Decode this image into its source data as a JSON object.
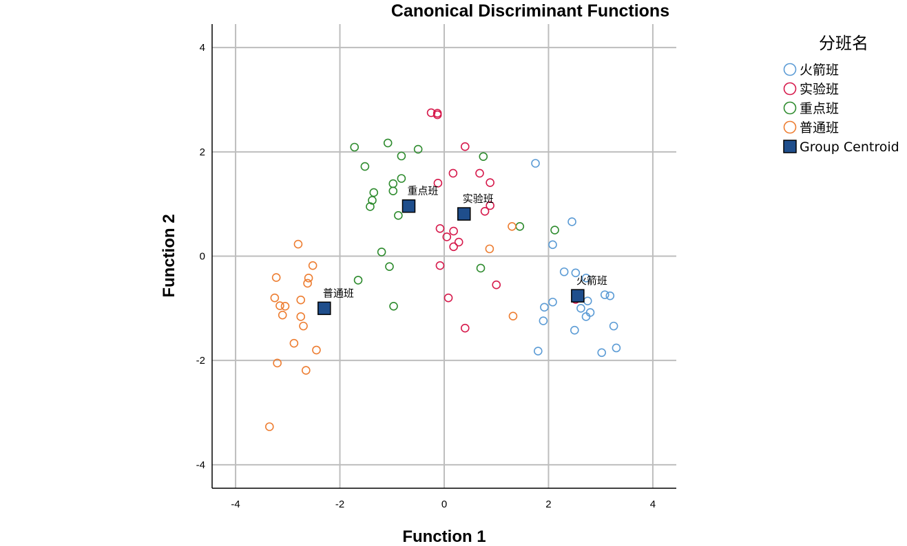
{
  "chart_data": {
    "type": "scatter",
    "title": "Canonical Discriminant Functions",
    "xlabel": "Function 1",
    "ylabel": "Function 2",
    "xlim": [
      -4.45,
      4.45
    ],
    "ylim": [
      -4.45,
      4.45
    ],
    "xticks": [
      -4,
      -2,
      0,
      2,
      4
    ],
    "yticks": [
      -4,
      -2,
      0,
      2,
      4
    ],
    "grid": true,
    "legend": {
      "title": "分班名",
      "placement": "right"
    },
    "series": [
      {
        "name": "火箭班",
        "color": "#5b9bd5",
        "points": [
          [
            1.75,
            1.78
          ],
          [
            2.45,
            0.66
          ],
          [
            2.08,
            0.22
          ],
          [
            2.3,
            -0.3
          ],
          [
            2.52,
            -0.32
          ],
          [
            2.72,
            -0.42
          ],
          [
            2.6,
            -0.8
          ],
          [
            3.08,
            -0.74
          ],
          [
            3.18,
            -0.76
          ],
          [
            2.75,
            -0.86
          ],
          [
            2.08,
            -0.88
          ],
          [
            1.92,
            -0.98
          ],
          [
            2.62,
            -1.0
          ],
          [
            2.8,
            -1.08
          ],
          [
            2.72,
            -1.16
          ],
          [
            1.9,
            -1.24
          ],
          [
            3.25,
            -1.34
          ],
          [
            2.5,
            -1.42
          ],
          [
            3.3,
            -1.76
          ],
          [
            1.8,
            -1.82
          ],
          [
            3.02,
            -1.85
          ]
        ],
        "centroid": [
          2.56,
          -0.76
        ]
      },
      {
        "name": "实验班",
        "color": "#d6194b",
        "points": [
          [
            -0.25,
            2.75
          ],
          [
            -0.13,
            2.74
          ],
          [
            -0.13,
            2.71
          ],
          [
            0.4,
            2.1
          ],
          [
            0.17,
            1.59
          ],
          [
            0.68,
            1.59
          ],
          [
            0.88,
            1.41
          ],
          [
            -0.12,
            1.4
          ],
          [
            0.88,
            0.97
          ],
          [
            0.78,
            0.86
          ],
          [
            -0.08,
            0.53
          ],
          [
            0.18,
            0.48
          ],
          [
            0.05,
            0.37
          ],
          [
            0.28,
            0.27
          ],
          [
            0.18,
            0.18
          ],
          [
            -0.08,
            -0.18
          ],
          [
            1.0,
            -0.55
          ],
          [
            0.08,
            -0.8
          ],
          [
            2.52,
            -0.83
          ],
          [
            0.4,
            -1.38
          ]
        ],
        "centroid": [
          0.38,
          0.81
        ]
      },
      {
        "name": "重点班",
        "color": "#2e8b2e",
        "points": [
          [
            -1.08,
            2.17
          ],
          [
            -1.72,
            2.09
          ],
          [
            -0.5,
            2.05
          ],
          [
            -0.82,
            1.92
          ],
          [
            0.75,
            1.91
          ],
          [
            -1.52,
            1.72
          ],
          [
            -0.82,
            1.49
          ],
          [
            -0.98,
            1.39
          ],
          [
            -1.35,
            1.22
          ],
          [
            -0.98,
            1.25
          ],
          [
            -1.38,
            1.07
          ],
          [
            -1.42,
            0.95
          ],
          [
            -0.88,
            0.78
          ],
          [
            1.45,
            0.57
          ],
          [
            2.12,
            0.5
          ],
          [
            -1.2,
            0.08
          ],
          [
            0.7,
            -0.23
          ],
          [
            -1.05,
            -0.2
          ],
          [
            -1.65,
            -0.46
          ],
          [
            -0.97,
            -0.96
          ]
        ],
        "centroid": [
          -0.68,
          0.96
        ]
      },
      {
        "name": "普通班",
        "color": "#ed7d31",
        "points": [
          [
            1.3,
            0.57
          ],
          [
            0.87,
            0.14
          ],
          [
            -2.8,
            0.23
          ],
          [
            -2.52,
            -0.18
          ],
          [
            -3.22,
            -0.41
          ],
          [
            -2.6,
            -0.42
          ],
          [
            -2.62,
            -0.52
          ],
          [
            -3.25,
            -0.8
          ],
          [
            -2.75,
            -0.84
          ],
          [
            -3.15,
            -0.95
          ],
          [
            -3.05,
            -0.96
          ],
          [
            -3.1,
            -1.13
          ],
          [
            -2.75,
            -1.16
          ],
          [
            1.32,
            -1.15
          ],
          [
            -2.7,
            -1.34
          ],
          [
            -2.88,
            -1.67
          ],
          [
            -2.45,
            -1.8
          ],
          [
            -3.2,
            -2.05
          ],
          [
            -2.65,
            -2.19
          ],
          [
            -3.35,
            -3.27
          ]
        ],
        "centroid": [
          -2.3,
          -1.0
        ]
      }
    ],
    "centroid_legend_label": "Group Centroid",
    "centroid_color": "#1f4e8c"
  }
}
